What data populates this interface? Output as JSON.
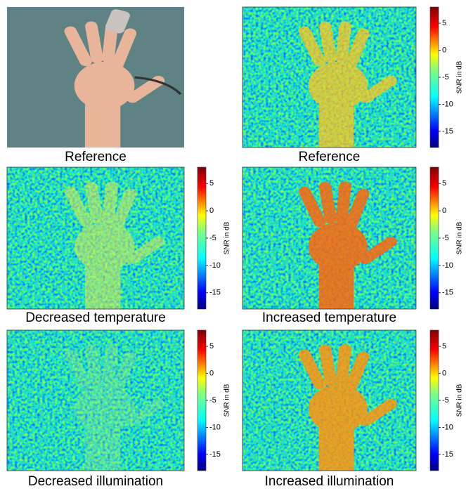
{
  "panels": [
    {
      "caption": "Reference",
      "kind": "photo"
    },
    {
      "caption": "Reference",
      "kind": "snr-map"
    },
    {
      "caption": "Decreased temperature",
      "kind": "snr-map"
    },
    {
      "caption": "Increased temperature",
      "kind": "snr-map"
    },
    {
      "caption": "Decreased illumination",
      "kind": "snr-map"
    },
    {
      "caption": "Increased illumination",
      "kind": "snr-map"
    }
  ],
  "colorbar": {
    "label": "SNR in dB",
    "clim": [
      -18,
      8
    ],
    "ticks": [
      5,
      0,
      -5,
      -10,
      -15
    ]
  }
}
